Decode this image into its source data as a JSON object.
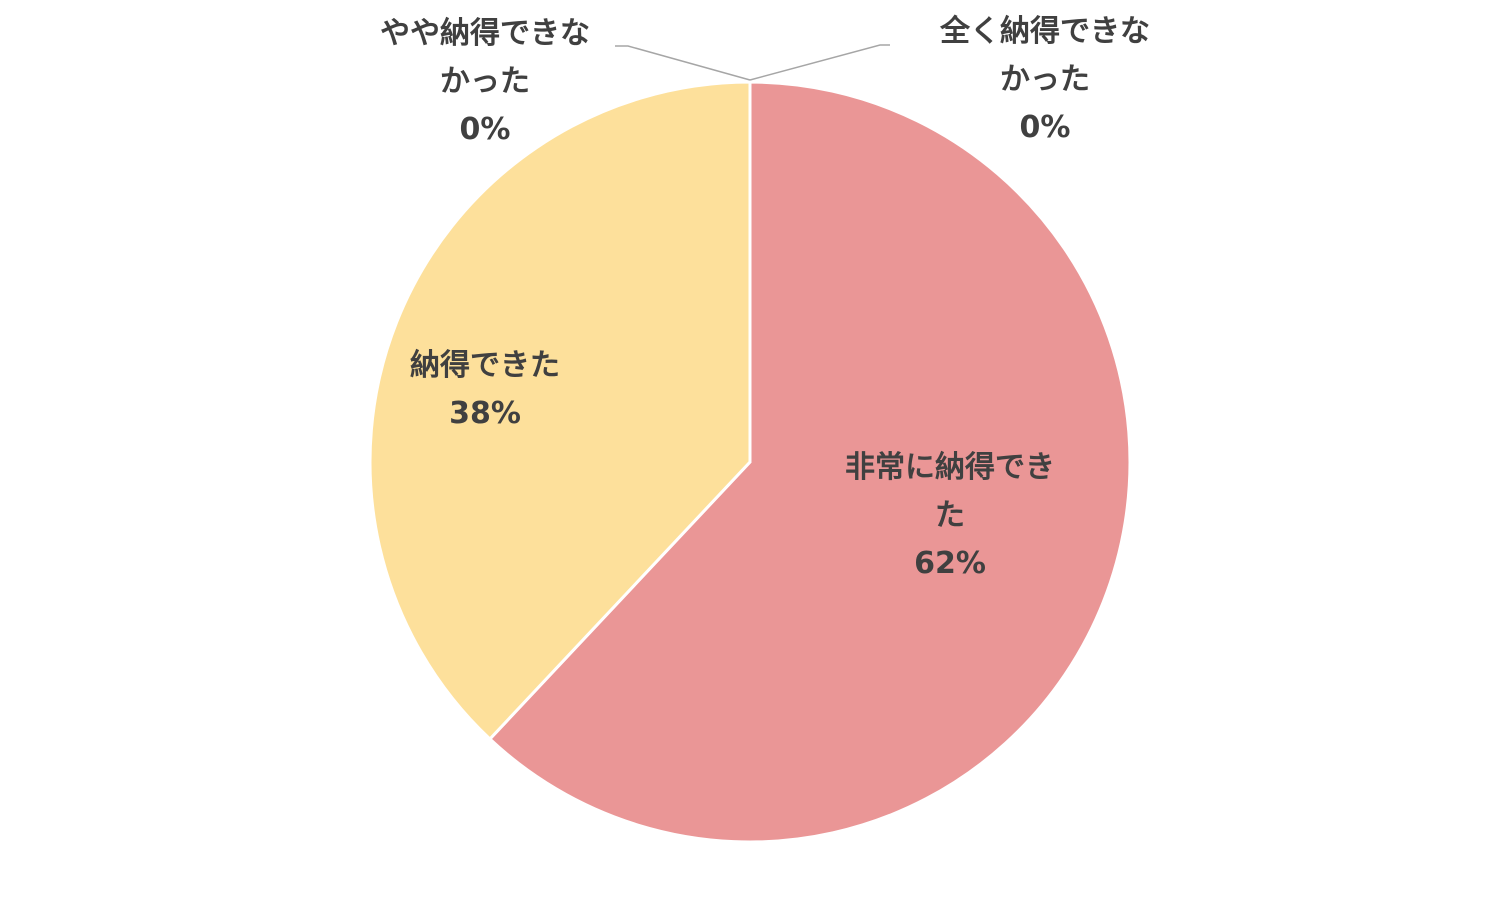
{
  "chart_data": {
    "type": "pie",
    "categories": [
      "非常に納得できた",
      "納得できた",
      "やや納得できなかった",
      "全く納得できなかった"
    ],
    "values": [
      62,
      38,
      0,
      0
    ],
    "value_labels": [
      "62%",
      "38%",
      "0%",
      "0%"
    ],
    "colors": [
      "#ea9696",
      "#fde09b",
      "#a9c4e6",
      "#b9dcae"
    ]
  }
}
